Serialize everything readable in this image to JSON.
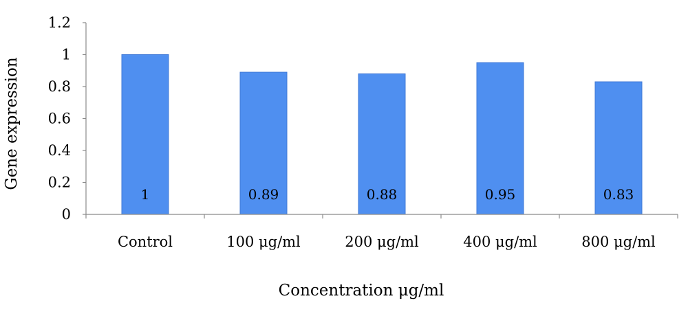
{
  "chart_data": {
    "type": "bar",
    "categories": [
      "Control",
      "100 μg/ml",
      "200 μg/ml",
      "400 μg/ml",
      "800 μg/ml"
    ],
    "values": [
      1,
      0.89,
      0.88,
      0.95,
      0.83
    ],
    "data_labels": [
      "1",
      "0.89",
      "0.88",
      "0.95",
      "0.83"
    ],
    "xlabel": "Concentration μg/ml",
    "ylabel": "Gene expression",
    "ylim": [
      0,
      1.2
    ],
    "yticks": [
      0,
      0.2,
      0.4,
      0.6,
      0.8,
      1,
      1.2
    ],
    "ytick_labels": [
      "0",
      "0.2",
      "0.4",
      "0.6",
      "0.8",
      "1",
      "1.2"
    ],
    "grid": false,
    "legend": "none",
    "bar_color": "#4f8ff0",
    "bar_edge_color": "#3f78d6"
  }
}
